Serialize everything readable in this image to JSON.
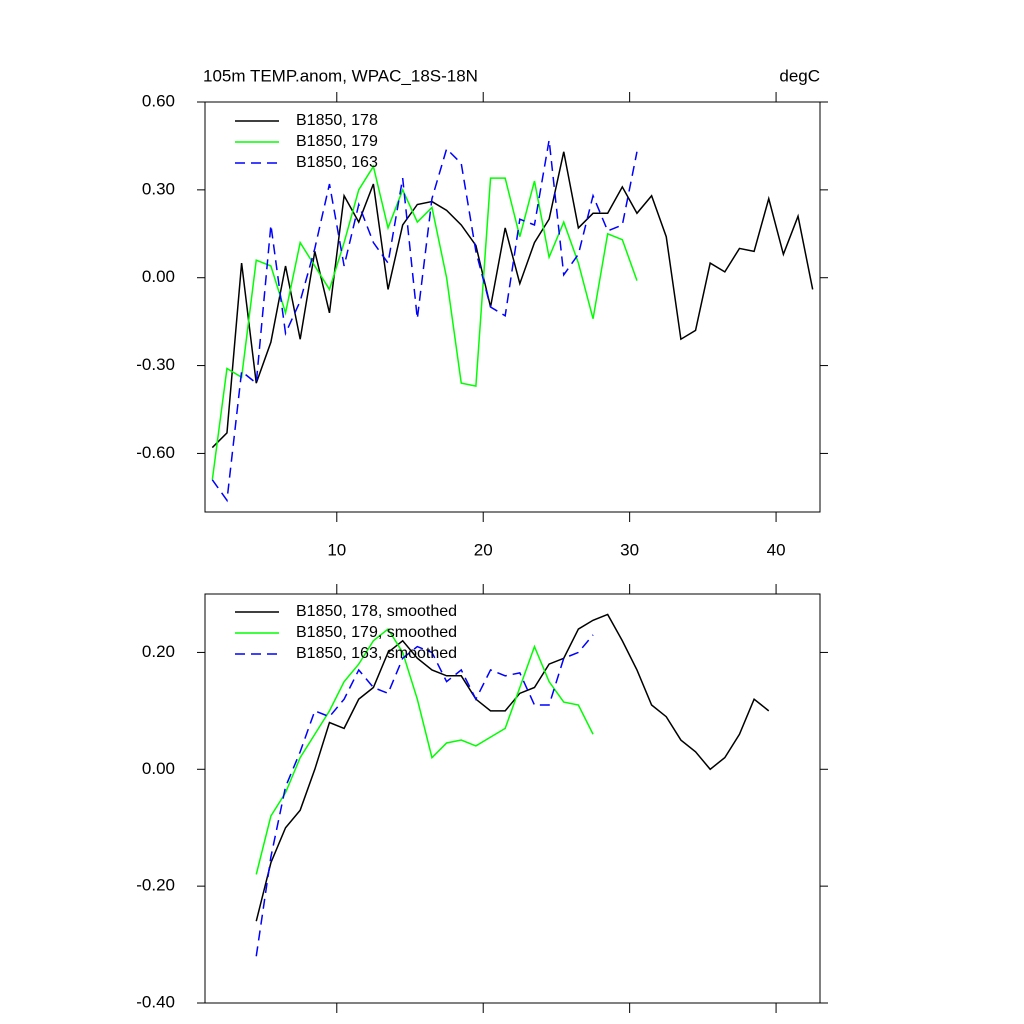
{
  "chart_data": [
    {
      "type": "line",
      "title": "105m TEMP.anom, WPAC_18S-18N",
      "units": "degC",
      "x": [
        1.5,
        2.5,
        3.5,
        4.5,
        5.5,
        6.5,
        7.5,
        8.5,
        9.5,
        10.5,
        11.5,
        12.5,
        13.5,
        14.5,
        15.5,
        16.5,
        17.5,
        18.5,
        19.5,
        20.5,
        21.5,
        22.5,
        23.5,
        24.5,
        25.5,
        26.5,
        27.5,
        28.5,
        29.5,
        30.5,
        31.5,
        32.5,
        33.5,
        34.5,
        35.5,
        36.5,
        37.5,
        38.5,
        39.5,
        40.5,
        41.5,
        42.5
      ],
      "series": [
        {
          "name": "B1850, 178",
          "color": "#000000",
          "line_style": "solid",
          "values": [
            -0.58,
            -0.53,
            0.05,
            -0.36,
            -0.22,
            0.04,
            -0.21,
            0.09,
            -0.12,
            0.28,
            0.19,
            0.32,
            -0.04,
            0.18,
            0.25,
            0.26,
            0.23,
            0.18,
            0.11,
            -0.1,
            0.17,
            -0.02,
            0.12,
            0.2,
            0.43,
            0.17,
            0.22,
            0.22,
            0.31,
            0.22,
            0.28,
            0.14,
            -0.21,
            -0.18,
            0.05,
            0.02,
            0.1,
            0.09,
            0.27,
            0.08,
            0.21,
            -0.04
          ]
        },
        {
          "name": "B1850, 179",
          "color": "#00ff00",
          "line_style": "solid",
          "values": [
            -0.69,
            -0.31,
            -0.34,
            0.06,
            0.04,
            -0.12,
            0.12,
            0.04,
            -0.04,
            0.12,
            0.3,
            0.38,
            0.17,
            0.3,
            0.19,
            0.24,
            0.0,
            -0.36,
            -0.37,
            0.34,
            0.34,
            0.14,
            0.33,
            0.07,
            0.19,
            0.05,
            -0.14,
            0.15,
            0.13,
            -0.01,
            null,
            null,
            null,
            null,
            null,
            null,
            null,
            null,
            null,
            null,
            null,
            null
          ]
        },
        {
          "name": "B1850, 163",
          "color": "#0000ff",
          "line_style": "dashed",
          "values": [
            -0.69,
            -0.76,
            -0.32,
            -0.36,
            0.18,
            -0.19,
            -0.08,
            0.1,
            0.32,
            0.04,
            0.25,
            0.12,
            0.05,
            0.34,
            -0.14,
            0.27,
            0.44,
            0.39,
            0.09,
            -0.1,
            -0.13,
            0.2,
            0.18,
            0.47,
            0.01,
            0.08,
            0.28,
            0.16,
            0.18,
            0.43,
            null,
            null,
            null,
            null,
            null,
            null,
            null,
            null,
            null,
            null,
            null,
            null
          ]
        }
      ],
      "xlim": [
        1,
        43
      ],
      "xticks": [
        10,
        20,
        30,
        40
      ],
      "show_xtick_labels": true,
      "ylim": [
        -0.8,
        0.6
      ],
      "yticks": [
        {
          "value": -0.6,
          "label": "-0.60"
        },
        {
          "value": -0.3,
          "label": "-0.30"
        },
        {
          "value": 0,
          "label": "0.00"
        },
        {
          "value": 0.3,
          "label": "0.30"
        },
        {
          "value": 0.6,
          "label": "0.60"
        }
      ]
    },
    {
      "type": "line",
      "x": [
        4.5,
        5.5,
        6.5,
        7.5,
        8.5,
        9.5,
        10.5,
        11.5,
        12.5,
        13.5,
        14.5,
        15.5,
        16.5,
        17.5,
        18.5,
        19.5,
        20.5,
        21.5,
        22.5,
        23.5,
        24.5,
        25.5,
        26.5,
        27.5,
        28.5,
        29.5,
        30.5,
        31.5,
        32.5,
        33.5,
        34.5,
        35.5,
        36.5,
        37.5,
        38.5,
        39.5
      ],
      "series": [
        {
          "name": "B1850, 178, smoothed",
          "color": "#000000",
          "line_style": "solid",
          "values": [
            -0.26,
            -0.16,
            -0.1,
            -0.07,
            0.0,
            0.08,
            0.07,
            0.12,
            0.14,
            0.2,
            0.22,
            0.19,
            0.17,
            0.16,
            0.16,
            0.12,
            0.1,
            0.1,
            0.13,
            0.14,
            0.18,
            0.19,
            0.24,
            0.255,
            0.265,
            0.22,
            0.17,
            0.11,
            0.09,
            0.05,
            0.03,
            0.0,
            0.02,
            0.06,
            0.12,
            0.1
          ]
        },
        {
          "name": "B1850, 179, smoothed",
          "color": "#00ff00",
          "line_style": "solid",
          "values": [
            -0.18,
            -0.08,
            -0.04,
            0.02,
            0.06,
            0.1,
            0.15,
            0.18,
            0.22,
            0.24,
            0.2,
            0.12,
            0.02,
            0.045,
            0.05,
            0.04,
            0.055,
            0.07,
            0.14,
            0.21,
            0.15,
            0.115,
            0.11,
            0.06,
            null,
            null,
            null,
            null,
            null,
            null,
            null,
            null,
            null,
            null,
            null,
            null
          ]
        },
        {
          "name": "B1850, 163, smoothed",
          "color": "#0000ff",
          "line_style": "dashed",
          "values": [
            -0.32,
            -0.15,
            -0.03,
            0.03,
            0.1,
            0.09,
            0.12,
            0.17,
            0.14,
            0.13,
            0.19,
            0.21,
            0.2,
            0.15,
            0.17,
            0.12,
            0.17,
            0.16,
            0.165,
            0.11,
            0.11,
            0.19,
            0.2,
            0.23,
            null,
            null,
            null,
            null,
            null,
            null,
            null,
            null,
            null,
            null,
            null,
            null
          ]
        }
      ],
      "xlim": [
        1,
        43
      ],
      "xticks": [
        10,
        20,
        30,
        40
      ],
      "show_xtick_labels": false,
      "ylim": [
        -0.4,
        0.3
      ],
      "yticks": [
        {
          "value": -0.4,
          "label": "-0.40"
        },
        {
          "value": -0.2,
          "label": "-0.20"
        },
        {
          "value": 0,
          "label": "0.00"
        },
        {
          "value": 0.2,
          "label": "0.20"
        }
      ]
    }
  ]
}
